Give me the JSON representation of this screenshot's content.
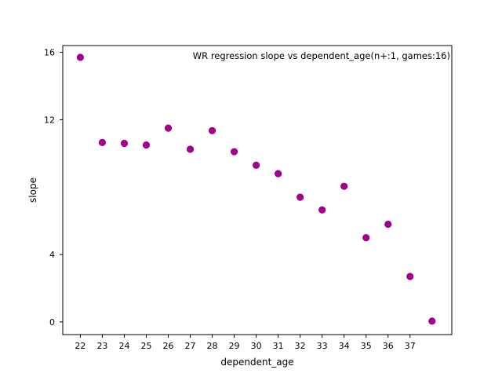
{
  "chart_data": {
    "type": "scatter",
    "title": "WR regression slope vs dependent_age(n+:1, games:16)",
    "xlabel": "dependent_age",
    "ylabel": "slope",
    "x_ticks": [
      22,
      23,
      24,
      25,
      26,
      27,
      28,
      29,
      30,
      31,
      32,
      33,
      34,
      35,
      36,
      37
    ],
    "y_ticks": [
      0,
      4,
      12,
      16
    ],
    "xlim": [
      21.2,
      38.9
    ],
    "ylim": [
      -0.75,
      16.4
    ],
    "grid": false,
    "point_color": "#a0008c",
    "points": [
      {
        "x": 22,
        "y": 15.7
      },
      {
        "x": 23,
        "y": 10.65
      },
      {
        "x": 24,
        "y": 10.6
      },
      {
        "x": 25,
        "y": 10.5
      },
      {
        "x": 26,
        "y": 11.5
      },
      {
        "x": 27,
        "y": 10.25
      },
      {
        "x": 28,
        "y": 11.35
      },
      {
        "x": 29,
        "y": 10.1
      },
      {
        "x": 30,
        "y": 9.3
      },
      {
        "x": 31,
        "y": 8.8
      },
      {
        "x": 32,
        "y": 7.4
      },
      {
        "x": 33,
        "y": 6.65
      },
      {
        "x": 34,
        "y": 8.05
      },
      {
        "x": 35,
        "y": 5.0
      },
      {
        "x": 36,
        "y": 5.8
      },
      {
        "x": 37,
        "y": 2.7
      },
      {
        "x": 38,
        "y": 0.05
      }
    ]
  }
}
